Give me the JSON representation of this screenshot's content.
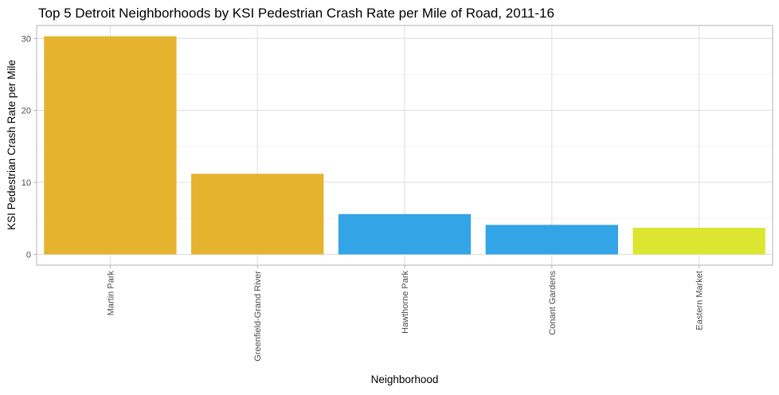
{
  "chart_data": {
    "type": "bar",
    "title": "Top 5 Detroit Neighborhoods by KSI Pedestrian Crash Rate per Mile of Road, 2011-16",
    "xlabel": "Neighborhood",
    "ylabel": "KSI Pedestrian Crash Rate per Mile",
    "categories": [
      "Martin Park",
      "Greenfield-Grand River",
      "Hawthorne Park",
      "Conant Gardens",
      "Eastern Market"
    ],
    "values": [
      30.3,
      11.2,
      5.6,
      4.1,
      3.7
    ],
    "bar_colors": [
      "#E6B32E",
      "#E6B32E",
      "#33A4E6",
      "#33A4E6",
      "#DCE630"
    ],
    "ylim": [
      -1.5,
      31.8
    ],
    "yticks": [
      0,
      10,
      20,
      30
    ],
    "ytick_labels": [
      "0",
      "10",
      "20",
      "30"
    ],
    "grid": true,
    "legend": "none"
  }
}
